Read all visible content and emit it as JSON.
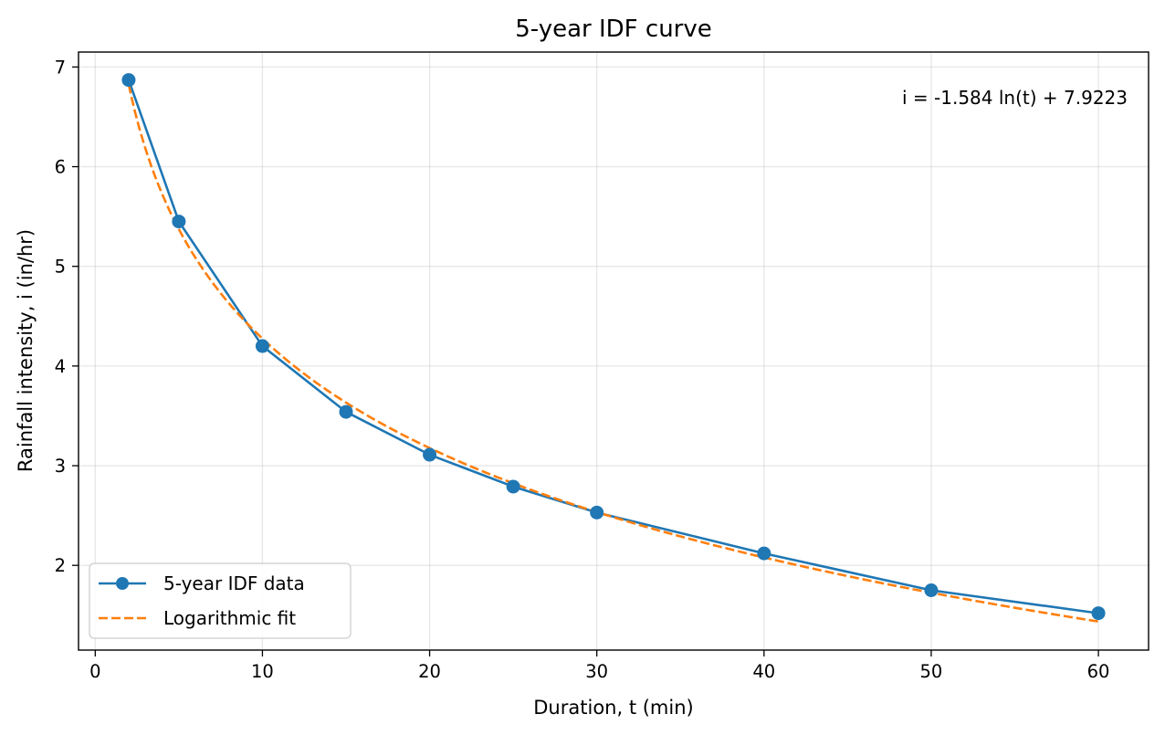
{
  "chart_data": {
    "type": "line",
    "title": "5-year IDF curve",
    "xlabel": "Duration, t (min)",
    "ylabel": "Rainfall intensity, i (in/hr)",
    "xlim": [
      -1,
      63
    ],
    "ylim": [
      1.15,
      7.15
    ],
    "xticks": [
      0,
      10,
      20,
      30,
      40,
      50,
      60
    ],
    "yticks": [
      2,
      3,
      4,
      5,
      6,
      7
    ],
    "grid": true,
    "legend_position": "lower-left",
    "annotation": "i = -1.584 ln(t) + 7.9223",
    "fit": {
      "a": -1.584,
      "b": 7.9223,
      "t_range": [
        2,
        60
      ]
    },
    "series": [
      {
        "name": "5-year IDF data",
        "style": "solid-line-with-markers",
        "color": "#1f77b4",
        "x": [
          2,
          5,
          10,
          15,
          20,
          25,
          30,
          40,
          50,
          60
        ],
        "y": [
          6.87,
          5.45,
          4.2,
          3.54,
          3.11,
          2.79,
          2.53,
          2.12,
          1.75,
          1.52
        ]
      },
      {
        "name": "Logarithmic fit",
        "style": "dashed-line",
        "color": "#ff7f0e"
      }
    ]
  }
}
